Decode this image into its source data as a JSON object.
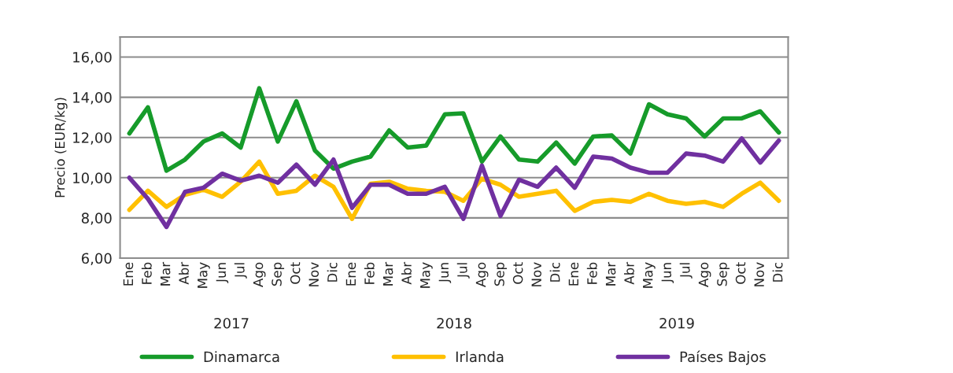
{
  "chart_data": {
    "type": "line",
    "ylabel": "Precio (EUR/kg)",
    "categories": [
      "Ene",
      "Feb",
      "Mar",
      "Abr",
      "May",
      "Jun",
      "Jul",
      "Ago",
      "Sep",
      "Oct",
      "Nov",
      "Dic",
      "Ene",
      "Feb",
      "Mar",
      "Abr",
      "May",
      "Jun",
      "Jul",
      "Ago",
      "Sep",
      "Oct",
      "Nov",
      "Dic",
      "Ene",
      "Feb",
      "Mar",
      "Abr",
      "May",
      "Jun",
      "Jul",
      "Ago",
      "Sep",
      "Oct",
      "Nov",
      "Dic"
    ],
    "series": [
      {
        "name": "Dinamarca",
        "color": "#169b2a",
        "values": [
          12.2,
          13.5,
          10.35,
          10.9,
          11.8,
          12.2,
          11.5,
          14.45,
          11.8,
          13.8,
          11.35,
          10.45,
          10.8,
          11.05,
          12.35,
          11.5,
          11.6,
          13.15,
          13.2,
          10.8,
          12.05,
          10.9,
          10.8,
          11.75,
          10.7,
          12.05,
          12.1,
          11.2,
          13.65,
          13.15,
          12.95,
          12.05,
          12.95,
          12.95,
          13.3,
          12.25
        ]
      },
      {
        "name": "Irlanda",
        "color": "#ffc000",
        "values": [
          8.4,
          9.35,
          8.55,
          9.15,
          9.4,
          9.05,
          9.8,
          10.8,
          9.2,
          9.35,
          10.1,
          9.55,
          7.95,
          9.7,
          9.8,
          9.45,
          9.35,
          9.3,
          8.85,
          9.95,
          9.65,
          9.05,
          9.2,
          9.35,
          8.35,
          8.8,
          8.9,
          8.8,
          9.2,
          8.85,
          8.7,
          8.8,
          8.55,
          9.2,
          9.75,
          8.85
        ]
      },
      {
        "name": "Países Bajos",
        "color": "#7030a0",
        "values": [
          10.0,
          8.95,
          7.55,
          9.3,
          9.5,
          10.2,
          9.85,
          10.1,
          9.75,
          10.65,
          9.65,
          10.9,
          8.5,
          9.65,
          9.65,
          9.2,
          9.2,
          9.55,
          7.95,
          10.6,
          8.1,
          9.9,
          9.55,
          10.5,
          9.5,
          11.05,
          10.95,
          10.5,
          10.25,
          10.25,
          11.2,
          11.1,
          10.8,
          11.95,
          10.75,
          11.85
        ]
      }
    ],
    "annotations": [
      "2017",
      "2018",
      "2019"
    ],
    "ylim": [
      6,
      17
    ],
    "yticks": [
      {
        "value": 6,
        "label": "6,00"
      },
      {
        "value": 8,
        "label": "8,00"
      },
      {
        "value": 10,
        "label": "10,00"
      },
      {
        "value": 12,
        "label": "12,00"
      },
      {
        "value": 14,
        "label": "14,00"
      },
      {
        "value": 16,
        "label": "16,00"
      }
    ],
    "grid": "y",
    "legend": "bottom",
    "line_style": "solid",
    "marker": "none"
  }
}
